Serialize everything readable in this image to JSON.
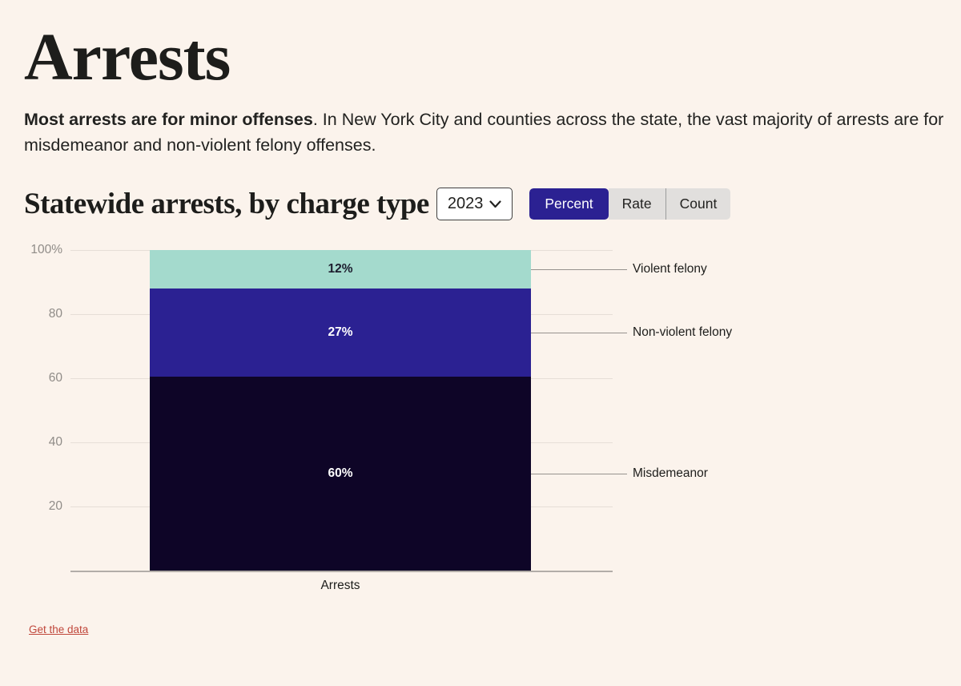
{
  "page": {
    "title": "Arrests"
  },
  "intro": {
    "bold": "Most arrests are for minor offenses",
    "rest": ". In New York City and counties across the state, the vast majority of arrests are for misdemeanor and non-violent felony offenses."
  },
  "header": {
    "title": "Statewide arrests, by charge type",
    "year_selected": "2023",
    "toggle_options": [
      "Percent",
      "Rate",
      "Count"
    ],
    "toggle_active": "Percent"
  },
  "chart_data": {
    "type": "bar",
    "stacked": true,
    "orientation": "vertical",
    "categories": [
      "Arrests"
    ],
    "series": [
      {
        "name": "Violent felony",
        "value": 12,
        "display": "12%",
        "color": "#a4dacd",
        "label_color": "#1d1d2e"
      },
      {
        "name": "Non-violent felony",
        "value": 27,
        "display": "27%",
        "color": "#2b2192",
        "label_color": "#ffffff"
      },
      {
        "name": "Misdemeanor",
        "value": 60,
        "display": "60%",
        "color": "#0e0527",
        "label_color": "#ffffff"
      }
    ],
    "yticks": [
      "100%",
      "80",
      "60",
      "40",
      "20"
    ],
    "ylim": [
      0,
      100
    ],
    "xlabel": "Arrests",
    "grid": true,
    "legend_position": "right-callout"
  },
  "footer": {
    "link_label": "Get the data"
  },
  "colors": {
    "background": "#fbf3ec",
    "accent_indigo": "#2b2192",
    "teal": "#a4dacd",
    "dark_navy": "#0e0527",
    "toggle_inactive_bg": "#e1dfdd",
    "link_red": "#c0473b",
    "tick_gray": "#908c88",
    "gridline": "#e6ded7",
    "axis": "#b2ada8"
  }
}
